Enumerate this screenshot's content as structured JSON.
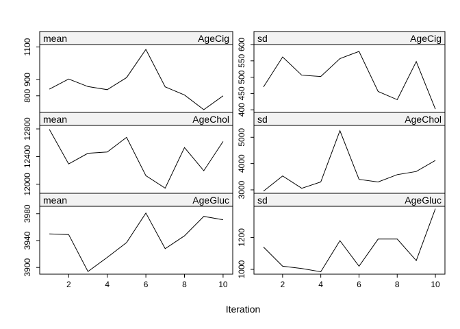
{
  "chart_data": {
    "type": "line",
    "xlabel": "Iteration",
    "x": [
      1,
      2,
      3,
      4,
      5,
      6,
      7,
      8,
      9,
      10
    ],
    "x_ticks": [
      "2",
      "4",
      "6",
      "8",
      "10"
    ],
    "grid": false,
    "panels": [
      {
        "stat": "mean",
        "variable": "AgeCig",
        "values": [
          841,
          903,
          857,
          838,
          912,
          1085,
          855,
          805,
          715,
          800
        ],
        "y_ticks": [
          "800",
          "900",
          "1100"
        ],
        "ylim": [
          698,
          1115
        ]
      },
      {
        "stat": "sd",
        "variable": "AgeCig",
        "values": [
          470,
          562,
          506,
          502,
          557,
          579,
          456,
          431,
          548,
          402
        ],
        "y_ticks": [
          "400",
          "450",
          "500",
          "550",
          "600"
        ],
        "ylim": [
          392,
          600
        ]
      },
      {
        "stat": "mean",
        "variable": "AgeChol",
        "values": [
          12794,
          12294,
          12448,
          12466,
          12678,
          12124,
          11944,
          12530,
          12196,
          12618
        ],
        "y_ticks": [
          "12000",
          "12400",
          "12800"
        ],
        "ylim": [
          11870,
          12850
        ]
      },
      {
        "stat": "sd",
        "variable": "AgeChol",
        "values": [
          2950,
          3530,
          3060,
          3300,
          5250,
          3400,
          3300,
          3580,
          3700,
          4120
        ],
        "y_ticks": [
          "3000",
          "4000",
          "5000"
        ],
        "ylim": [
          2870,
          5450
        ]
      },
      {
        "stat": "mean",
        "variable": "AgeGluc",
        "values": [
          3950,
          3949,
          3894,
          3915,
          3937,
          3981,
          3928,
          3947,
          3976,
          3971
        ],
        "y_ticks": [
          "3900",
          "3940",
          "3980"
        ],
        "ylim": [
          3890,
          3991
        ]
      },
      {
        "stat": "sd",
        "variable": "AgeGluc",
        "values": [
          1140,
          1020,
          1005,
          985,
          1180,
          1020,
          1190,
          1190,
          1055,
          1380
        ],
        "y_ticks": [
          "1000",
          "1200"
        ],
        "ylim": [
          970,
          1395
        ]
      }
    ]
  }
}
